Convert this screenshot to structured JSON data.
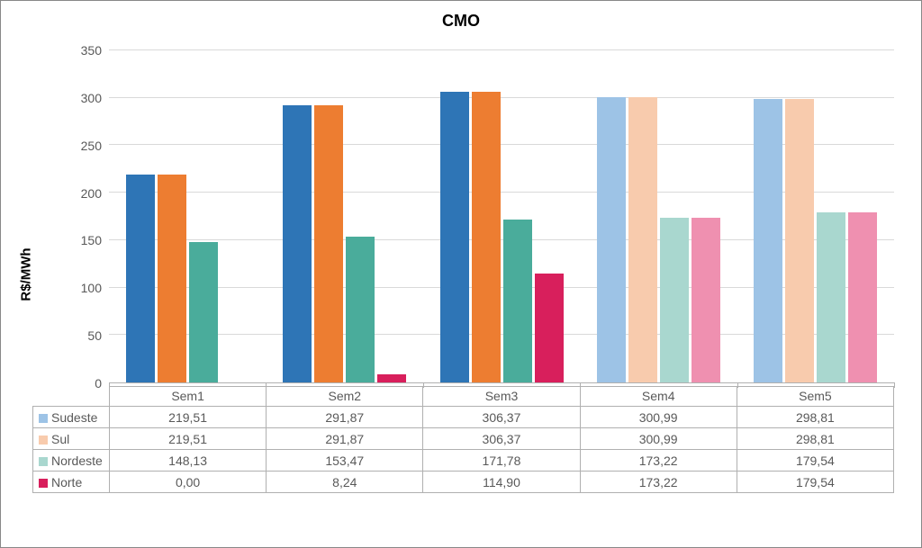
{
  "chart": {
    "type": "bar",
    "title": "CMO",
    "title_fontsize": 18,
    "title_fontweight": "bold",
    "ylabel": "R$/MWh",
    "ylabel_fontsize": 15,
    "ylabel_fontweight": "bold",
    "ylim": [
      0,
      350
    ],
    "ytick_step": 50,
    "yticks": [
      0,
      50,
      100,
      150,
      200,
      250,
      300,
      350
    ],
    "categories": [
      "Sem1",
      "Sem2",
      "Sem3",
      "Sem4",
      "Sem5"
    ],
    "faded_from_index": 3,
    "series": [
      {
        "name": "Sudeste",
        "color": "#2e75b6",
        "color_faded": "#9dc3e6",
        "values": [
          219.51,
          291.87,
          306.37,
          300.99,
          298.81
        ],
        "value_labels": [
          "219,51",
          "291,87",
          "306,37",
          "300,99",
          "298,81"
        ]
      },
      {
        "name": "Sul",
        "color": "#ed7d31",
        "color_faded": "#f8cbad",
        "values": [
          219.51,
          291.87,
          306.37,
          300.99,
          298.81
        ],
        "value_labels": [
          "219,51",
          "291,87",
          "306,37",
          "300,99",
          "298,81"
        ]
      },
      {
        "name": "Nordeste",
        "color": "#4aac9b",
        "color_faded": "#a9d7cf",
        "values": [
          148.13,
          153.47,
          171.78,
          173.22,
          179.54
        ],
        "value_labels": [
          "148,13",
          "153,47",
          "171,78",
          "173,22",
          "179,54"
        ]
      },
      {
        "name": "Norte",
        "color": "#d81f5c",
        "color_faded": "#ef90b0",
        "values": [
          0.0,
          8.24,
          114.9,
          173.22,
          179.54
        ],
        "value_labels": [
          "0,00",
          "8,24",
          "114,90",
          "173,22",
          "179,54"
        ]
      }
    ],
    "grid_color": "#d9d9d9",
    "axis_color": "#b0b0b0",
    "tick_label_color": "#595959",
    "tick_label_fontsize": 14,
    "background_color": "#ffffff",
    "border_color": "#888888",
    "legend_swatch_colors": [
      "#9dc3e6",
      "#f8cbad",
      "#a9d7cf",
      "#d81f5c"
    ]
  }
}
